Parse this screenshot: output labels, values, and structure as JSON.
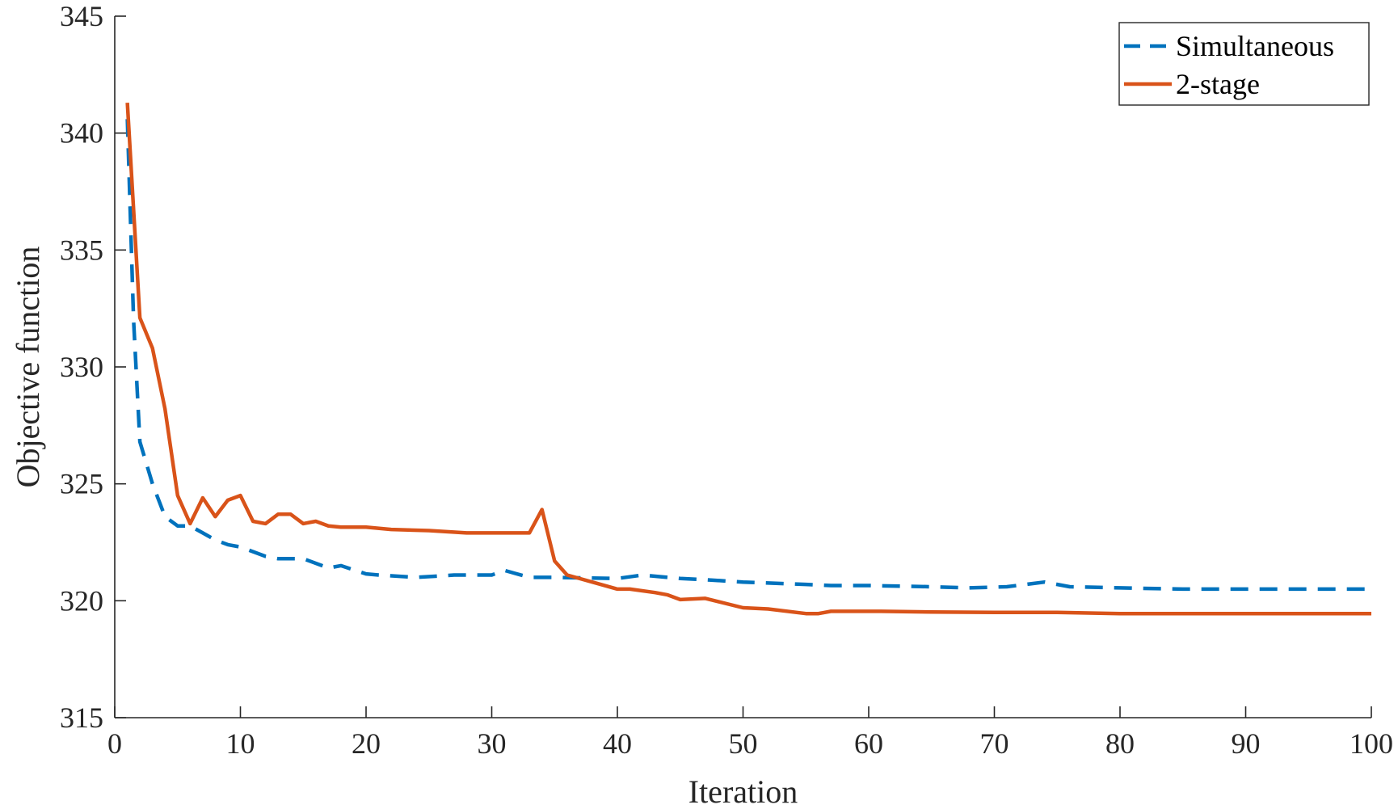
{
  "chart_data": {
    "type": "line",
    "title": "",
    "xlabel": "Iteration",
    "ylabel": "Objective function",
    "xlim": [
      0,
      100
    ],
    "ylim": [
      315,
      345
    ],
    "xticks": [
      0,
      10,
      20,
      30,
      40,
      50,
      60,
      70,
      80,
      90,
      100
    ],
    "yticks": [
      315,
      320,
      325,
      330,
      335,
      340,
      345
    ],
    "grid": false,
    "legend_position": "top-right",
    "series": [
      {
        "name": "Simultaneous",
        "style": "dashed",
        "color": "#0072BD",
        "x": [
          1,
          1.5,
          2,
          3,
          4,
          5,
          6,
          7,
          8,
          9,
          10,
          12,
          13,
          15,
          17,
          18,
          20,
          21,
          24,
          27,
          29,
          30,
          31,
          33,
          35,
          40,
          42,
          45,
          47,
          50,
          55,
          57,
          60,
          65,
          68,
          71,
          74,
          76,
          80,
          85,
          90,
          95,
          100
        ],
        "y": [
          340.6,
          332.0,
          326.8,
          325.0,
          323.6,
          323.2,
          323.2,
          322.9,
          322.6,
          322.4,
          322.3,
          321.9,
          321.8,
          321.8,
          321.4,
          321.5,
          321.15,
          321.1,
          321.0,
          321.1,
          321.1,
          321.1,
          321.3,
          321.0,
          321.0,
          320.95,
          321.1,
          320.95,
          320.9,
          320.8,
          320.7,
          320.65,
          320.65,
          320.6,
          320.55,
          320.6,
          320.8,
          320.6,
          320.55,
          320.5,
          320.5,
          320.5,
          320.5
        ]
      },
      {
        "name": "2-stage",
        "style": "solid",
        "color": "#D95319",
        "x": [
          1,
          2,
          3,
          4,
          5,
          6,
          7,
          8,
          9,
          10,
          11,
          12,
          13,
          14,
          15,
          16,
          17,
          18,
          20,
          22,
          25,
          28,
          30,
          33,
          34,
          35,
          36,
          38,
          40,
          41,
          43,
          44,
          45,
          47,
          50,
          52,
          55,
          56,
          57,
          61,
          65,
          70,
          75,
          80,
          85,
          90,
          95,
          100
        ],
        "y": [
          341.3,
          332.1,
          330.8,
          328.2,
          324.5,
          323.3,
          324.4,
          323.6,
          324.3,
          324.5,
          323.4,
          323.3,
          323.7,
          323.7,
          323.3,
          323.4,
          323.2,
          323.15,
          323.15,
          323.05,
          323.0,
          322.9,
          322.9,
          322.9,
          323.9,
          321.7,
          321.1,
          320.8,
          320.5,
          320.5,
          320.35,
          320.25,
          320.05,
          320.1,
          319.7,
          319.65,
          319.45,
          319.45,
          319.55,
          319.55,
          319.52,
          319.5,
          319.5,
          319.45,
          319.45,
          319.45,
          319.45,
          319.45
        ]
      }
    ]
  }
}
